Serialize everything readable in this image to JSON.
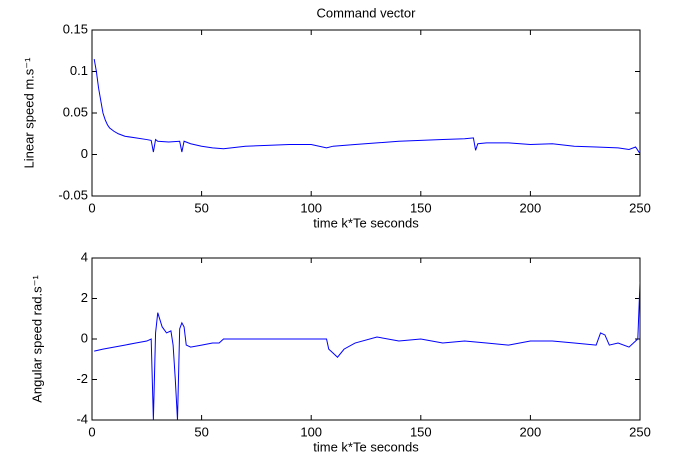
{
  "chart_data": [
    {
      "type": "line",
      "title": "Command vector",
      "x_label": "time k*Te seconds",
      "y_label": "Linear speed m.s⁻¹",
      "x": [
        1,
        2,
        3,
        4,
        5,
        6,
        7,
        8,
        10,
        12,
        15,
        20,
        25,
        27,
        28,
        29,
        30,
        35,
        40,
        41,
        42,
        45,
        50,
        55,
        60,
        70,
        80,
        90,
        100,
        107,
        110,
        120,
        130,
        140,
        150,
        160,
        170,
        174,
        175,
        176,
        180,
        190,
        200,
        210,
        220,
        230,
        240,
        245,
        248,
        250
      ],
      "series": [
        {
          "color": "#0000ff",
          "values": [
            0.115,
            0.1,
            0.08,
            0.065,
            0.05,
            0.042,
            0.036,
            0.032,
            0.028,
            0.025,
            0.022,
            0.02,
            0.018,
            0.017,
            0.003,
            0.018,
            0.016,
            0.015,
            0.016,
            0.003,
            0.016,
            0.013,
            0.01,
            0.008,
            0.007,
            0.01,
            0.011,
            0.012,
            0.012,
            0.008,
            0.01,
            0.012,
            0.014,
            0.016,
            0.017,
            0.018,
            0.019,
            0.02,
            0.005,
            0.013,
            0.014,
            0.014,
            0.012,
            0.013,
            0.01,
            0.009,
            0.008,
            0.006,
            0.009,
            0.001
          ]
        }
      ],
      "xlim": [
        0,
        250
      ],
      "xticks": [
        0,
        50,
        100,
        150,
        200,
        250
      ],
      "ylim": [
        -0.05,
        0.15
      ],
      "yticks": [
        -0.05,
        0,
        0.05,
        0.1,
        0.15
      ],
      "grid": false
    },
    {
      "type": "line",
      "x_label": "time k*Te seconds",
      "y_label": "Angular speed rad.s⁻¹",
      "x": [
        1,
        5,
        10,
        15,
        20,
        25,
        27,
        28,
        29,
        30,
        32,
        34,
        36,
        37,
        38,
        39,
        40,
        41,
        42,
        43,
        45,
        50,
        55,
        58,
        60,
        70,
        80,
        90,
        100,
        105,
        107,
        108,
        110,
        112,
        115,
        120,
        130,
        140,
        150,
        160,
        170,
        180,
        190,
        200,
        210,
        220,
        230,
        232,
        234,
        236,
        240,
        245,
        248,
        249,
        250
      ],
      "series": [
        {
          "color": "#0000ff",
          "values": [
            -0.6,
            -0.5,
            -0.4,
            -0.3,
            -0.2,
            -0.1,
            0,
            -4,
            0.3,
            1.3,
            0.6,
            0.3,
            0.4,
            -0.3,
            -2,
            -4,
            0.5,
            0.8,
            0.6,
            -0.3,
            -0.4,
            -0.3,
            -0.2,
            -0.2,
            0,
            0,
            0,
            0,
            0,
            0,
            0,
            -0.5,
            -0.7,
            -0.9,
            -0.5,
            -0.2,
            0.1,
            -0.1,
            0,
            -0.2,
            -0.1,
            -0.2,
            -0.3,
            -0.1,
            -0.1,
            -0.2,
            -0.3,
            0.3,
            0.2,
            -0.3,
            -0.2,
            -0.4,
            -0.1,
            0,
            2.8
          ]
        }
      ],
      "xlim": [
        0,
        250
      ],
      "xticks": [
        0,
        50,
        100,
        150,
        200,
        250
      ],
      "ylim": [
        -4,
        4
      ],
      "yticks": [
        -4,
        -2,
        0,
        2,
        4
      ],
      "grid": false
    }
  ]
}
